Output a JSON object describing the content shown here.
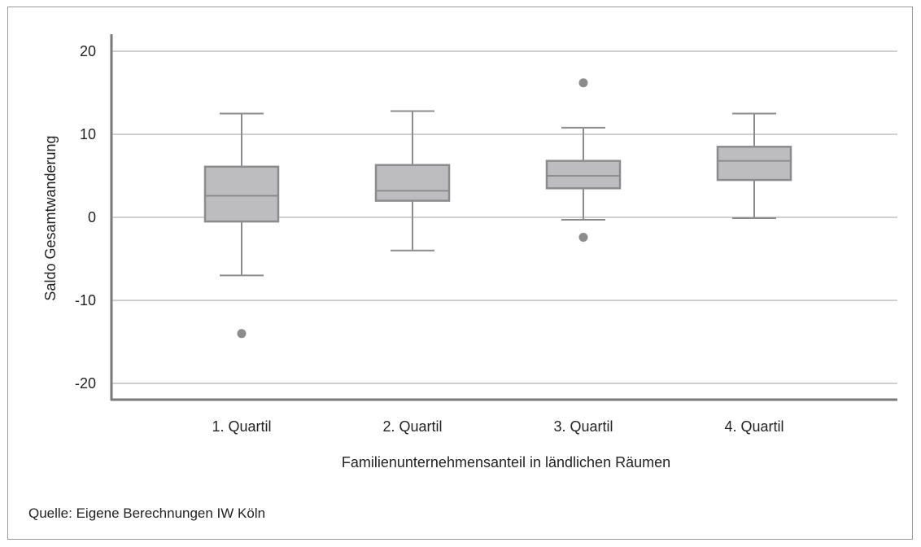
{
  "chart_data": {
    "type": "boxplot",
    "xlabel": "Familienunternehmensanteil in ländlichen Räumen",
    "ylabel": "Saldo Gesamtwanderung",
    "ylim": [
      -22,
      22
    ],
    "yticks": [
      20,
      10,
      0,
      -10,
      -20
    ],
    "grid": true,
    "categories": [
      "1. Quartil",
      "2. Quartil",
      "3. Quartil",
      "4. Quartil"
    ],
    "boxes": [
      {
        "whisker_low": -7,
        "q1": -0.5,
        "median": 2.6,
        "q3": 6.1,
        "whisker_high": 12.5,
        "outliers": [
          -14
        ]
      },
      {
        "whisker_low": -4,
        "q1": 2,
        "median": 3.2,
        "q3": 6.3,
        "whisker_high": 12.8,
        "outliers": []
      },
      {
        "whisker_low": -0.3,
        "q1": 3.5,
        "median": 5,
        "q3": 6.8,
        "whisker_high": 10.8,
        "outliers": [
          16.2,
          -2.4
        ]
      },
      {
        "whisker_low": -0.1,
        "q1": 4.5,
        "median": 6.8,
        "q3": 8.5,
        "whisker_high": 12.5,
        "outliers": []
      }
    ]
  },
  "source": "Quelle: Eigene Berechnungen IW Köln",
  "colors": {
    "box_fill": "#bdbdbf",
    "box_stroke": "#8c8c8e",
    "grid": "#cfcfcf",
    "axis": "#7a7a7a",
    "outlier": "#8c8c8e"
  }
}
